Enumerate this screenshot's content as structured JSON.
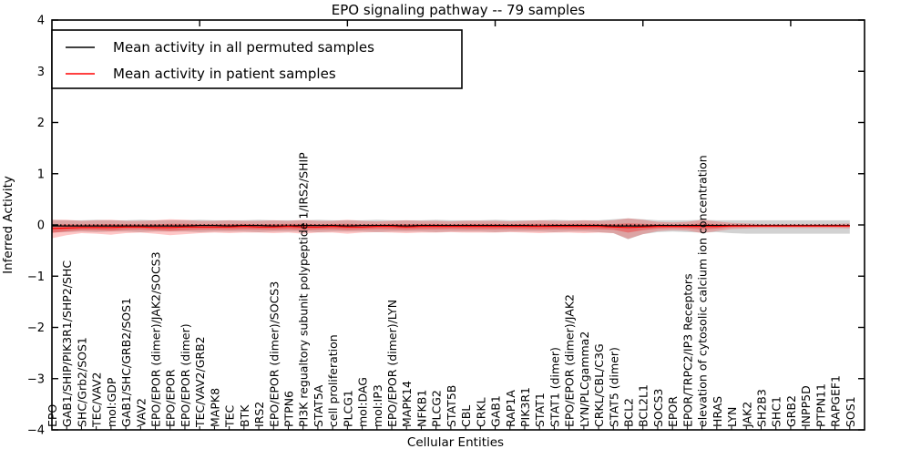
{
  "chart_data": {
    "type": "line",
    "title": "EPO signaling pathway -- 79 samples",
    "xlabel": "Cellular Entities",
    "ylabel": "Inferred Activity",
    "ylim": [
      -4,
      4
    ],
    "yticks": [
      -4,
      -3,
      -2,
      -1,
      0,
      1,
      2,
      3,
      4
    ],
    "grid": false,
    "zero_line": 0,
    "legend_position": "upper left",
    "categories": [
      "EPO",
      "GAB1/SHIP/PIK3R1/SHP2/SHC",
      "SHC/Grb2/SOS1",
      "TEC/VAV2",
      "mol:GDP",
      "GAB1/SHC/GRB2/SOS1",
      "VAV2",
      "EPO/EPOR (dimer)/JAK2/SOCS3",
      "EPO/EPOR",
      "EPO/EPOR (dimer)",
      "TEC/VAV2/GRB2",
      "MAPK8",
      "TEC",
      "BTK",
      "IRS2",
      "EPO/EPOR (dimer)/SOCS3",
      "PTPN6",
      "PI3K regualtory subunit polypeptide 1/IRS2/SHIP",
      "STAT5A",
      "cell proliferation",
      "PLCG1",
      "mol:DAG",
      "mol:IP3",
      "EPO/EPOR (dimer)/LYN",
      "MAPK14",
      "NFKB1",
      "PLCG2",
      "STAT5B",
      "CBL",
      "CRKL",
      "GAB1",
      "RAP1A",
      "PIK3R1",
      "STAT1",
      "STAT1 (dimer)",
      "EPO/EPOR (dimer)/JAK2",
      "LYN/PLCgamma2",
      "CRKL/CBL/C3G",
      "STAT5 (dimer)",
      "BCL2",
      "BCL2L1",
      "SOCS3",
      "EPOR",
      "EPOR/TRPC2/IP3 Receptors",
      "elevation of cytosolic calcium ion concentration",
      "HRAS",
      "LYN",
      "JAK2",
      "SH2B3",
      "SHC1",
      "GRB2",
      "INPP5D",
      "PTPN11",
      "RAPGEF1",
      "SOS1"
    ],
    "series": [
      {
        "name": "Mean activity in all permuted samples",
        "color": "#000000",
        "values": [
          -0.02,
          -0.02,
          -0.02,
          -0.02,
          -0.02,
          -0.02,
          -0.02,
          -0.02,
          -0.02,
          -0.02,
          -0.01,
          -0.01,
          -0.02,
          -0.01,
          -0.01,
          -0.02,
          -0.02,
          -0.01,
          -0.01,
          -0.01,
          -0.02,
          -0.01,
          -0.01,
          -0.01,
          -0.02,
          -0.01,
          -0.01,
          -0.01,
          -0.01,
          -0.01,
          -0.01,
          -0.01,
          -0.01,
          -0.02,
          -0.01,
          -0.01,
          -0.01,
          -0.01,
          -0.02,
          -0.02,
          -0.02,
          -0.01,
          -0.01,
          -0.01,
          -0.01,
          -0.01,
          -0.01,
          -0.01,
          -0.01,
          -0.01,
          -0.01,
          -0.01,
          -0.01,
          -0.01,
          -0.01
        ]
      },
      {
        "name": "Mean activity in patient samples",
        "color": "#ff0000",
        "values": [
          -0.07,
          -0.06,
          -0.05,
          -0.05,
          -0.05,
          -0.04,
          -0.04,
          -0.05,
          -0.05,
          -0.04,
          -0.04,
          -0.04,
          -0.04,
          -0.03,
          -0.04,
          -0.04,
          -0.03,
          -0.04,
          -0.04,
          -0.03,
          -0.04,
          -0.04,
          -0.03,
          -0.03,
          -0.04,
          -0.03,
          -0.03,
          -0.03,
          -0.03,
          -0.03,
          -0.03,
          -0.03,
          -0.03,
          -0.03,
          -0.03,
          -0.03,
          -0.03,
          -0.03,
          -0.04,
          -0.05,
          -0.04,
          -0.03,
          -0.03,
          -0.03,
          -0.03,
          -0.03,
          -0.02,
          -0.02,
          -0.02,
          -0.02,
          -0.02,
          -0.02,
          -0.02,
          -0.02,
          -0.02
        ]
      }
    ],
    "bands": [
      {
        "name": "permuted-samples-band",
        "color": "#888888",
        "opacity": 0.38,
        "upper": [
          0.1,
          0.09,
          0.09,
          0.1,
          0.09,
          0.09,
          0.1,
          0.09,
          0.09,
          0.09,
          0.1,
          0.09,
          0.09,
          0.09,
          0.1,
          0.09,
          0.09,
          0.09,
          0.1,
          0.09,
          0.09,
          0.09,
          0.1,
          0.09,
          0.09,
          0.09,
          0.1,
          0.09,
          0.09,
          0.09,
          0.1,
          0.09,
          0.09,
          0.09,
          0.1,
          0.09,
          0.09,
          0.09,
          0.11,
          0.13,
          0.11,
          0.09,
          0.09,
          0.09,
          0.1,
          0.09,
          0.09,
          0.09,
          0.09,
          0.09,
          0.09,
          0.09,
          0.09,
          0.09,
          0.09
        ],
        "lower": [
          -0.15,
          -0.14,
          -0.13,
          -0.14,
          -0.13,
          -0.13,
          -0.14,
          -0.13,
          -0.13,
          -0.13,
          -0.14,
          -0.13,
          -0.13,
          -0.13,
          -0.14,
          -0.13,
          -0.13,
          -0.13,
          -0.14,
          -0.13,
          -0.13,
          -0.13,
          -0.14,
          -0.13,
          -0.13,
          -0.13,
          -0.14,
          -0.13,
          -0.13,
          -0.13,
          -0.14,
          -0.13,
          -0.13,
          -0.13,
          -0.14,
          -0.13,
          -0.13,
          -0.14,
          -0.16,
          -0.28,
          -0.18,
          -0.14,
          -0.13,
          -0.14,
          -0.15,
          -0.14,
          -0.16,
          -0.17,
          -0.17,
          -0.17,
          -0.17,
          -0.17,
          -0.17,
          -0.17,
          -0.17
        ]
      },
      {
        "name": "patient-samples-band",
        "color": "#ff0000",
        "opacity": 0.22,
        "upper": [
          0.1,
          0.1,
          0.08,
          0.09,
          0.1,
          0.08,
          0.08,
          0.09,
          0.11,
          0.1,
          0.08,
          0.08,
          0.09,
          0.08,
          0.08,
          0.09,
          0.08,
          0.1,
          0.08,
          0.08,
          0.1,
          0.08,
          0.07,
          0.08,
          0.09,
          0.08,
          0.08,
          0.07,
          0.08,
          0.08,
          0.08,
          0.07,
          0.08,
          0.09,
          0.08,
          0.08,
          0.09,
          0.08,
          0.09,
          0.13,
          0.1,
          0.06,
          0.05,
          0.06,
          0.1,
          0.07,
          0.04,
          0.03,
          0.02,
          0.02,
          0.02,
          0.02,
          0.02,
          0.02,
          0.03
        ],
        "lower": [
          -0.26,
          -0.2,
          -0.16,
          -0.17,
          -0.19,
          -0.16,
          -0.15,
          -0.17,
          -0.2,
          -0.18,
          -0.16,
          -0.15,
          -0.16,
          -0.15,
          -0.15,
          -0.16,
          -0.15,
          -0.17,
          -0.15,
          -0.15,
          -0.17,
          -0.15,
          -0.14,
          -0.15,
          -0.16,
          -0.15,
          -0.15,
          -0.14,
          -0.15,
          -0.15,
          -0.15,
          -0.14,
          -0.15,
          -0.16,
          -0.15,
          -0.15,
          -0.16,
          -0.15,
          -0.16,
          -0.27,
          -0.18,
          -0.12,
          -0.1,
          -0.11,
          -0.16,
          -0.12,
          -0.08,
          -0.07,
          -0.06,
          -0.06,
          -0.06,
          -0.06,
          -0.06,
          -0.06,
          -0.07
        ]
      }
    ]
  }
}
